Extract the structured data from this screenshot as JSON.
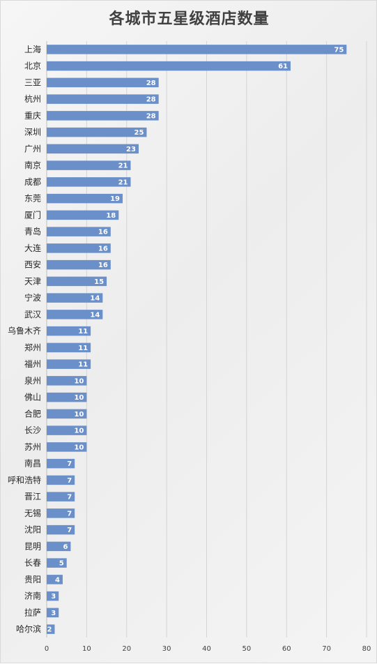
{
  "chart_data": {
    "type": "bar",
    "orientation": "horizontal",
    "title": "各城市五星级酒店数量",
    "xlabel": "",
    "ylabel": "",
    "xlim": [
      0,
      80
    ],
    "x_ticks": [
      0,
      10,
      20,
      30,
      40,
      50,
      60,
      70,
      80
    ],
    "grid": true,
    "bar_color": "#6a8fc9",
    "categories": [
      "上海",
      "北京",
      "三亚",
      "杭州",
      "重庆",
      "深圳",
      "广州",
      "南京",
      "成都",
      "东莞",
      "厦门",
      "青岛",
      "大连",
      "西安",
      "天津",
      "宁波",
      "武汉",
      "乌鲁木齐",
      "郑州",
      "福州",
      "泉州",
      "佛山",
      "合肥",
      "长沙",
      "苏州",
      "南昌",
      "呼和浩特",
      "晋江",
      "无锡",
      "沈阳",
      "昆明",
      "长春",
      "贵阳",
      "济南",
      "拉萨",
      "哈尔滨"
    ],
    "values": [
      75,
      61,
      28,
      28,
      28,
      25,
      23,
      21,
      21,
      19,
      18,
      16,
      16,
      16,
      15,
      14,
      14,
      11,
      11,
      11,
      10,
      10,
      10,
      10,
      10,
      7,
      7,
      7,
      7,
      7,
      6,
      5,
      4,
      3,
      3,
      2
    ]
  }
}
